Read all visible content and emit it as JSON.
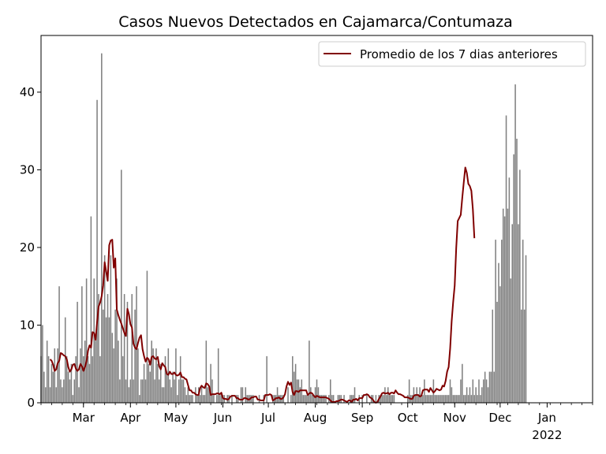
{
  "chart_data": {
    "type": "bar",
    "title": "Casos Nuevos Detectados en Cajamarca/Contumaza",
    "xlabel": "",
    "ylabel": "",
    "ylim": [
      0,
      47.3
    ],
    "yticks": [
      0,
      10,
      20,
      30,
      40
    ],
    "xlim": [
      "2021-02-01",
      "2022-01-31"
    ],
    "month_ticks": [
      {
        "date": "2021-03-01",
        "label": "Mar",
        "sublabel": ""
      },
      {
        "date": "2021-04-01",
        "label": "Apr",
        "sublabel": ""
      },
      {
        "date": "2021-05-01",
        "label": "May",
        "sublabel": ""
      },
      {
        "date": "2021-06-01",
        "label": "Jun",
        "sublabel": ""
      },
      {
        "date": "2021-07-01",
        "label": "Jul",
        "sublabel": ""
      },
      {
        "date": "2021-08-01",
        "label": "Aug",
        "sublabel": ""
      },
      {
        "date": "2021-09-01",
        "label": "Sep",
        "sublabel": ""
      },
      {
        "date": "2021-10-01",
        "label": "Oct",
        "sublabel": ""
      },
      {
        "date": "2021-11-01",
        "label": "Nov",
        "sublabel": ""
      },
      {
        "date": "2021-12-01",
        "label": "Dec",
        "sublabel": ""
      },
      {
        "date": "2022-01-01",
        "label": "Jan",
        "sublabel": "2022"
      }
    ],
    "bar_color": "#808080",
    "line_color": "#800000",
    "legend": {
      "position": "top-right",
      "entries": [
        "Promedio de los 7 dias anteriores"
      ]
    },
    "grid": false,
    "daily_start": "2021-02-01",
    "daily_values": [
      6,
      10,
      4,
      2,
      8,
      6,
      2,
      5,
      4,
      7,
      2,
      7,
      15,
      3,
      2,
      3,
      11,
      6,
      4,
      3,
      5,
      1,
      3,
      6,
      13,
      2,
      7,
      15,
      6,
      8,
      16,
      6,
      5,
      24,
      6,
      16,
      8,
      39,
      14,
      6,
      45,
      12,
      19,
      11,
      14,
      11,
      19,
      9,
      7,
      12,
      16,
      8,
      3,
      30,
      6,
      14,
      3,
      13,
      2,
      3,
      14,
      3,
      12,
      15,
      7,
      1,
      3,
      3,
      5,
      3,
      17,
      5,
      4,
      8,
      7,
      3,
      7,
      5,
      3,
      5,
      2,
      2,
      6,
      4,
      7,
      3,
      2,
      4,
      3,
      7,
      1,
      3,
      6,
      3,
      3,
      2,
      1,
      2,
      1,
      1,
      1,
      0,
      2,
      1,
      2,
      1,
      2,
      1,
      1,
      8,
      2,
      2,
      5,
      3,
      1,
      0,
      1,
      7,
      1,
      1,
      1,
      1,
      0,
      1,
      1,
      0,
      1,
      0,
      0,
      1,
      1,
      0,
      2,
      2,
      0,
      2,
      1,
      1,
      1,
      1,
      1,
      0,
      0,
      0,
      1,
      0,
      0,
      1,
      0,
      6,
      0,
      0,
      0,
      1,
      1,
      1,
      2,
      1,
      1,
      1,
      1,
      0,
      0,
      2,
      0,
      1,
      6,
      4,
      5,
      3,
      3,
      2,
      3,
      1,
      1,
      1,
      1,
      8,
      2,
      1,
      1,
      2,
      3,
      2,
      1,
      1,
      1,
      1,
      1,
      0,
      1,
      3,
      1,
      1,
      0,
      0,
      1,
      1,
      1,
      0,
      1,
      0,
      0,
      0,
      1,
      1,
      1,
      2,
      0,
      0,
      1,
      0,
      1,
      0,
      0,
      1,
      0,
      0,
      1,
      1,
      0,
      1,
      0,
      1,
      1,
      1,
      1,
      2,
      1,
      2,
      1,
      1,
      1,
      1,
      0,
      0,
      0,
      0,
      0,
      0,
      0,
      0,
      1,
      3,
      1,
      1,
      2,
      1,
      2,
      1,
      2,
      1,
      1,
      3,
      1,
      1,
      1,
      1,
      1,
      3,
      1,
      1,
      1,
      1,
      1,
      1,
      1,
      1,
      1,
      1,
      3,
      2,
      1,
      1,
      1,
      1,
      1,
      3,
      5,
      1,
      1,
      2,
      1,
      2,
      1,
      3,
      1,
      2,
      1,
      3,
      1,
      2,
      3,
      4,
      3,
      2,
      4,
      4,
      12,
      4,
      21,
      13,
      18,
      15,
      21,
      25,
      24,
      37,
      25,
      29,
      16,
      23,
      32,
      41,
      34,
      23,
      30,
      12,
      21,
      12,
      19
    ],
    "avg_start": "2021-02-07",
    "avg_values": [
      5.6,
      5.4,
      4.9,
      4.1,
      4.3,
      5.1,
      5.4,
      6.4,
      6.3,
      6.1,
      6.0,
      5.6,
      4.6,
      4.0,
      4.3,
      4.9,
      5.0,
      4.4,
      4.1,
      4.3,
      5.0,
      4.7,
      4.1,
      4.6,
      5.3,
      6.7,
      7.4,
      7.1,
      9.1,
      9.0,
      8.1,
      10.4,
      12.4,
      12.9,
      13.7,
      15.1,
      18.1,
      16.9,
      15.7,
      20.3,
      20.9,
      21.0,
      17.4,
      18.6,
      12.0,
      11.3,
      10.7,
      10.2,
      9.6,
      9.0,
      8.6,
      12.1,
      11.4,
      10.1,
      9.7,
      7.6,
      7.1,
      6.9,
      7.7,
      8.4,
      8.7,
      6.9,
      6.0,
      5.3,
      5.8,
      5.6,
      4.9,
      5.9,
      6.0,
      5.7,
      5.6,
      5.9,
      4.7,
      4.3,
      5.1,
      4.8,
      4.6,
      3.7,
      3.6,
      4.0,
      3.7,
      3.7,
      3.9,
      3.6,
      3.5,
      3.6,
      3.9,
      3.3,
      3.3,
      3.1,
      3.0,
      2.3,
      1.6,
      1.6,
      1.3,
      1.3,
      1.1,
      1.0,
      1.0,
      1.9,
      2.2,
      2.0,
      1.9,
      2.5,
      2.4,
      2.1,
      1.0,
      1.1,
      1.1,
      1.1,
      1.2,
      1.2,
      1.1,
      1.3,
      0.6,
      0.5,
      0.5,
      0.4,
      0.5,
      0.8,
      0.9,
      0.9,
      0.9,
      0.6,
      0.6,
      0.4,
      0.4,
      0.4,
      0.6,
      0.6,
      0.5,
      0.4,
      0.5,
      0.7,
      0.7,
      0.8,
      0.8,
      0.4,
      0.4,
      0.3,
      0.3,
      0.3,
      1.0,
      1.0,
      1.0,
      1.1,
      1.0,
      0.3,
      0.4,
      0.6,
      0.6,
      0.7,
      0.5,
      0.5,
      0.7,
      1.1,
      2.1,
      2.7,
      2.3,
      2.6,
      1.4,
      1.0,
      1.5,
      1.5,
      1.4,
      1.6,
      1.6,
      1.6,
      1.6,
      1.6,
      1.0,
      1.2,
      1.3,
      1.2,
      0.9,
      0.7,
      0.9,
      0.8,
      0.7,
      0.7,
      0.7,
      0.7,
      0.7,
      0.6,
      0.5,
      0.3,
      0.1,
      0.1,
      0.1,
      0.2,
      0.2,
      0.3,
      0.4,
      0.4,
      0.3,
      0.2,
      0.1,
      0.3,
      0.3,
      0.1,
      0.4,
      0.4,
      0.5,
      0.3,
      0.6,
      0.6,
      0.6,
      1.0,
      1.0,
      1.1,
      1.0,
      0.7,
      0.6,
      0.4,
      0.1,
      0.0,
      0.1,
      0.5,
      0.8,
      1.2,
      1.3,
      1.2,
      1.2,
      1.3,
      1.1,
      1.3,
      1.3,
      1.2,
      1.6,
      1.3,
      1.1,
      1.1,
      1.0,
      0.9,
      0.7,
      0.7,
      0.7,
      0.6,
      0.5,
      0.5,
      0.9,
      1.0,
      1.0,
      1.0,
      0.8,
      0.9,
      1.6,
      1.7,
      1.7,
      1.7,
      1.4,
      1.9,
      1.6,
      1.3,
      1.5,
      1.8,
      1.7,
      1.6,
      1.7,
      2.2,
      2.1,
      2.8,
      4.0,
      4.6,
      7.0,
      10.5,
      13.0,
      15.1,
      19.9,
      23.4,
      23.8,
      24.2,
      26.4,
      28.4,
      30.3,
      29.6,
      28.2,
      27.9,
      27.3,
      24.9,
      21.2
    ]
  }
}
